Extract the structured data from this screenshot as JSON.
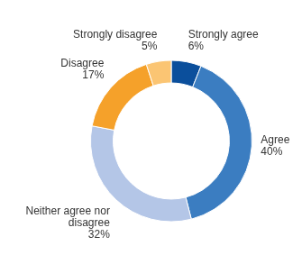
{
  "chart_data": {
    "type": "doughnut",
    "categories": [
      "Strongly agree",
      "Agree",
      "Neither agree nor disagree",
      "Disagree",
      "Strongly disagree"
    ],
    "values": [
      6,
      40,
      32,
      17,
      5
    ],
    "value_labels": [
      "6%",
      "40%",
      "32%",
      "17%",
      "5%"
    ],
    "colors": [
      "#0b4f9c",
      "#3b7dc1",
      "#b4c6e7",
      "#f5a12a",
      "#fbc573"
    ],
    "data_labels": true
  }
}
